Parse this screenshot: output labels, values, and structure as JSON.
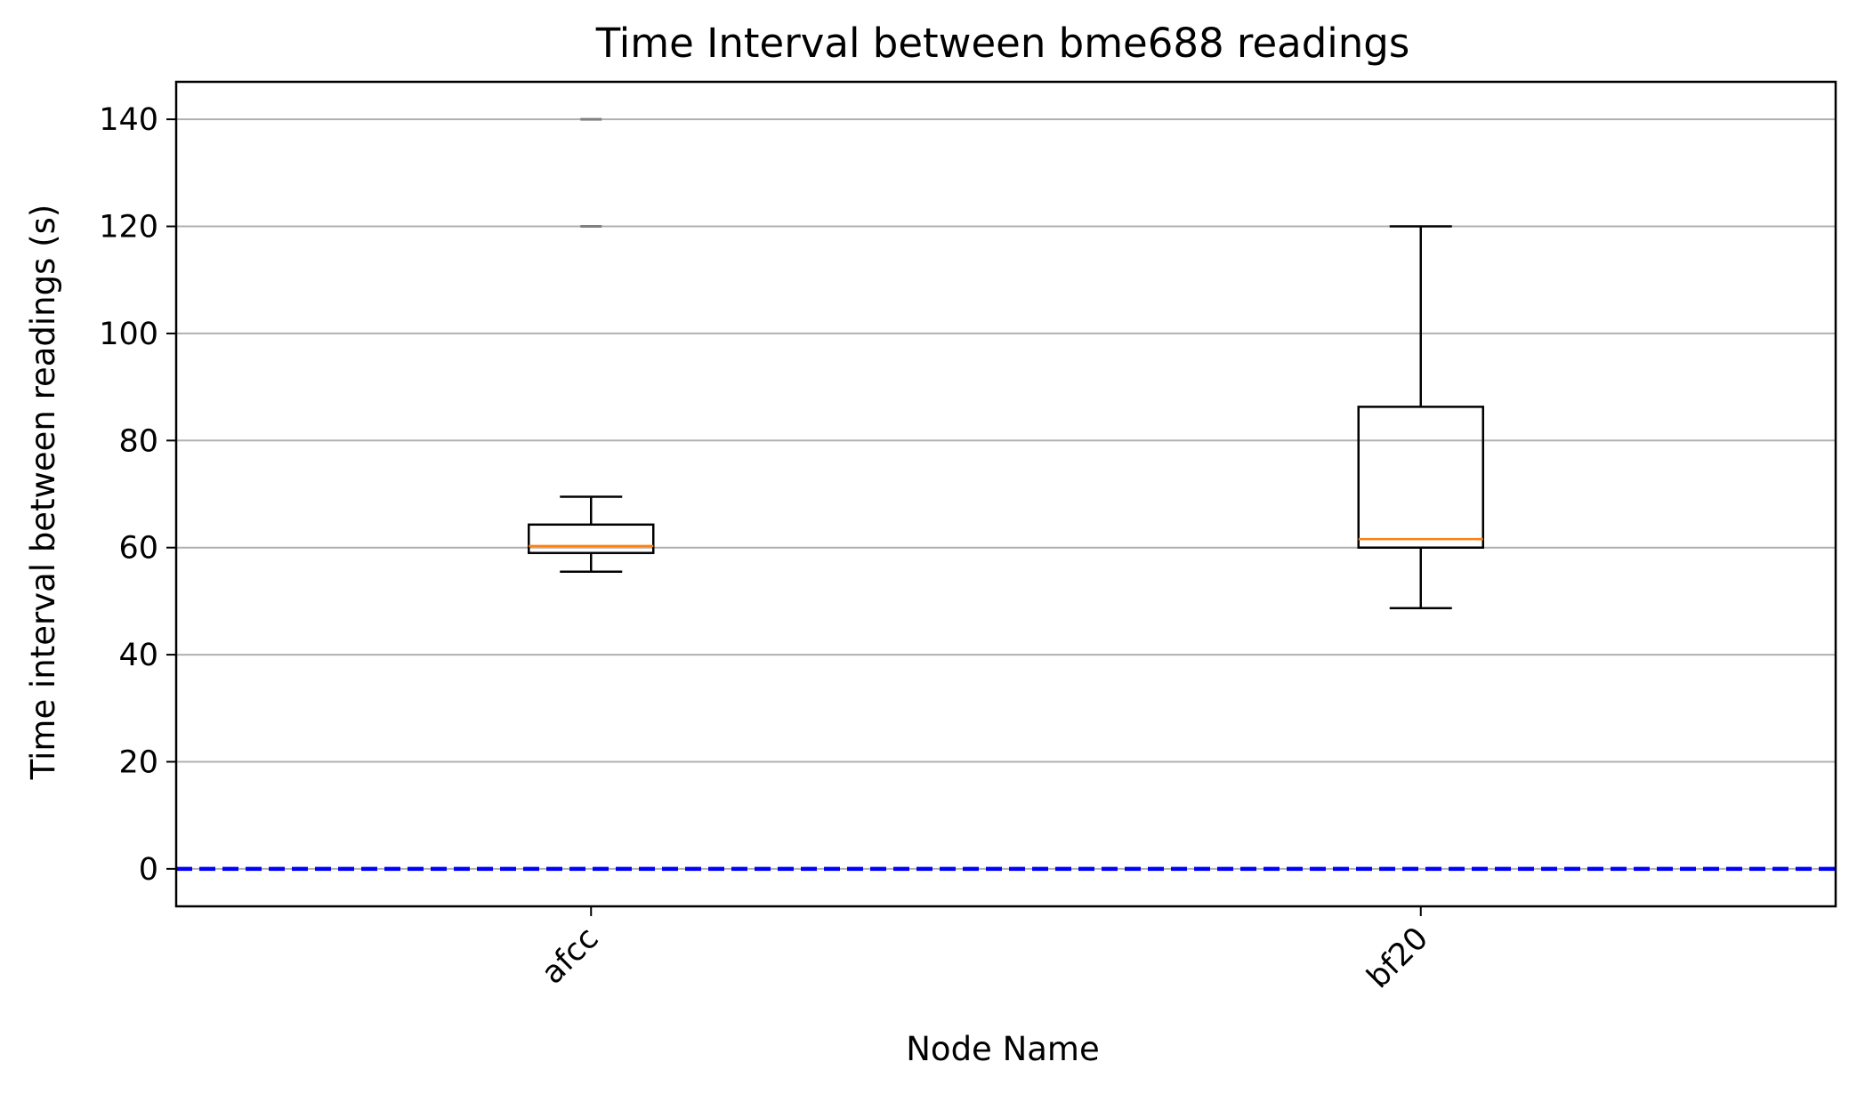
{
  "chart_data": {
    "type": "box",
    "title": "Time Interval between bme688 readings",
    "xlabel": "Node Name",
    "ylabel": "Time interval between readings (s)",
    "ylim": [
      -7,
      147
    ],
    "yticks": [
      0,
      20,
      40,
      60,
      80,
      100,
      120,
      140
    ],
    "grid": "horizontal",
    "categories": [
      "afcc",
      "bf20"
    ],
    "boxes": [
      {
        "category": "afcc",
        "whisker_low": 55.5,
        "q1": 59.0,
        "median": 60.3,
        "q3": 64.3,
        "whisker_high": 69.5,
        "outliers": [
          120,
          140
        ]
      },
      {
        "category": "bf20",
        "whisker_low": 48.7,
        "q1": 60.0,
        "median": 61.6,
        "q3": 86.3,
        "whisker_high": 120.0,
        "outliers": []
      }
    ],
    "reference_line": {
      "y": 0,
      "style": "dashed",
      "color": "#0000ff"
    },
    "colors": {
      "box": "#000000",
      "median": "#ff7f0e",
      "grid": "#b0b0b0",
      "outlier": "#808080"
    }
  }
}
